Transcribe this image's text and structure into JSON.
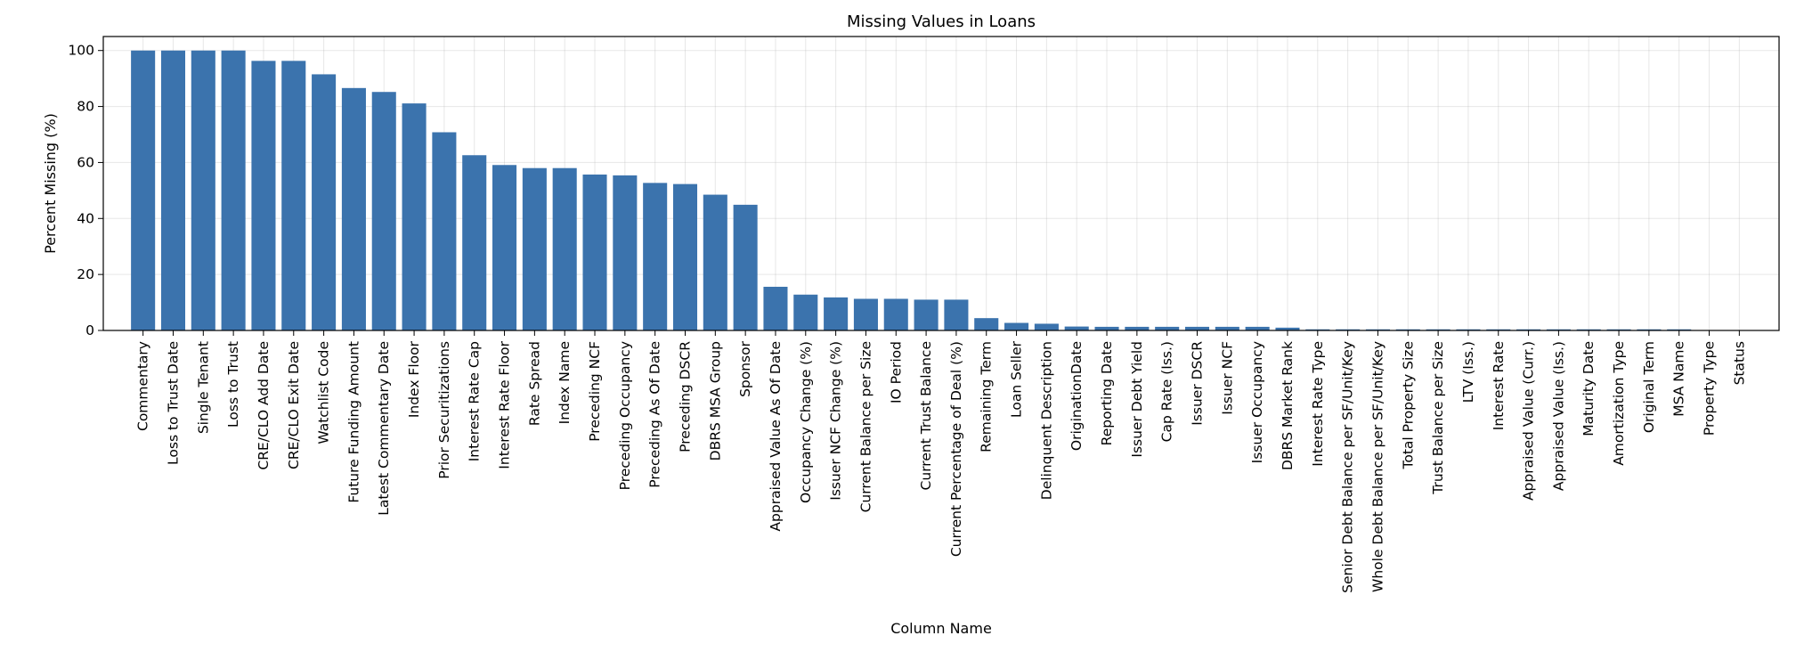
{
  "chart_data": {
    "type": "bar",
    "title": "Missing Values in Loans",
    "xlabel": "Column Name",
    "ylabel": "Percent Missing (%)",
    "ylim": [
      0,
      105
    ],
    "yticks": [
      0,
      20,
      40,
      60,
      80,
      100
    ],
    "grid": true,
    "bar_color": "#3b73ad",
    "categories": [
      "Commentary",
      "Loss to Trust Date",
      "Single Tenant",
      "Loss to Trust",
      "CRE/CLO Add Date",
      "CRE/CLO Exit Date",
      "Watchlist Code",
      "Future Funding Amount",
      "Latest Commentary Date",
      "Index Floor",
      "Prior Securitizations",
      "Interest Rate Cap",
      "Interest Rate Floor",
      "Rate Spread",
      "Index Name",
      "Preceding NCF",
      "Preceding Occupancy",
      "Preceding As Of Date",
      "Preceding DSCR",
      "DBRS MSA Group",
      "Sponsor",
      "Appraised Value As Of Date",
      "Occupancy Change (%)",
      "Issuer NCF Change (%)",
      "Current Balance per Size",
      "IO Period",
      "Current Trust Balance",
      "Current Percentage of Deal (%)",
      "Remaining Term",
      "Loan Seller",
      "Delinquent Description",
      "OriginationDate",
      "Reporting Date",
      "Issuer Debt Yield",
      "Cap Rate (Iss.)",
      "Issuer DSCR",
      "Issuer NCF",
      "Issuer Occupancy",
      "DBRS Market Rank",
      "Interest Rate Type",
      "Senior Debt Balance per SF/Unit/Key",
      "Whole Debt Balance per SF/Unit/Key",
      "Total Property Size",
      "Trust Balance per Size",
      "LTV (Iss.)",
      "Interest Rate",
      "Appraised Value (Curr.)",
      "Appraised Value (Iss.)",
      "Maturity Date",
      "Amortization Type",
      "Original Term",
      "MSA Name",
      "Property Type",
      "Status"
    ],
    "values": [
      100,
      100,
      100,
      100,
      96.3,
      96.3,
      91.5,
      86.6,
      85.2,
      81.1,
      70.8,
      62.6,
      59.1,
      58.0,
      58.0,
      55.7,
      55.4,
      52.7,
      52.3,
      48.5,
      44.9,
      15.6,
      12.8,
      11.8,
      11.3,
      11.3,
      11.0,
      11.0,
      4.4,
      2.7,
      2.4,
      1.4,
      1.3,
      1.3,
      1.3,
      1.3,
      1.3,
      1.3,
      1.0,
      0.4,
      0.4,
      0.4,
      0.4,
      0.4,
      0.4,
      0.4,
      0.4,
      0.4,
      0.4,
      0.4,
      0.4,
      0.4,
      0.15,
      0
    ]
  }
}
